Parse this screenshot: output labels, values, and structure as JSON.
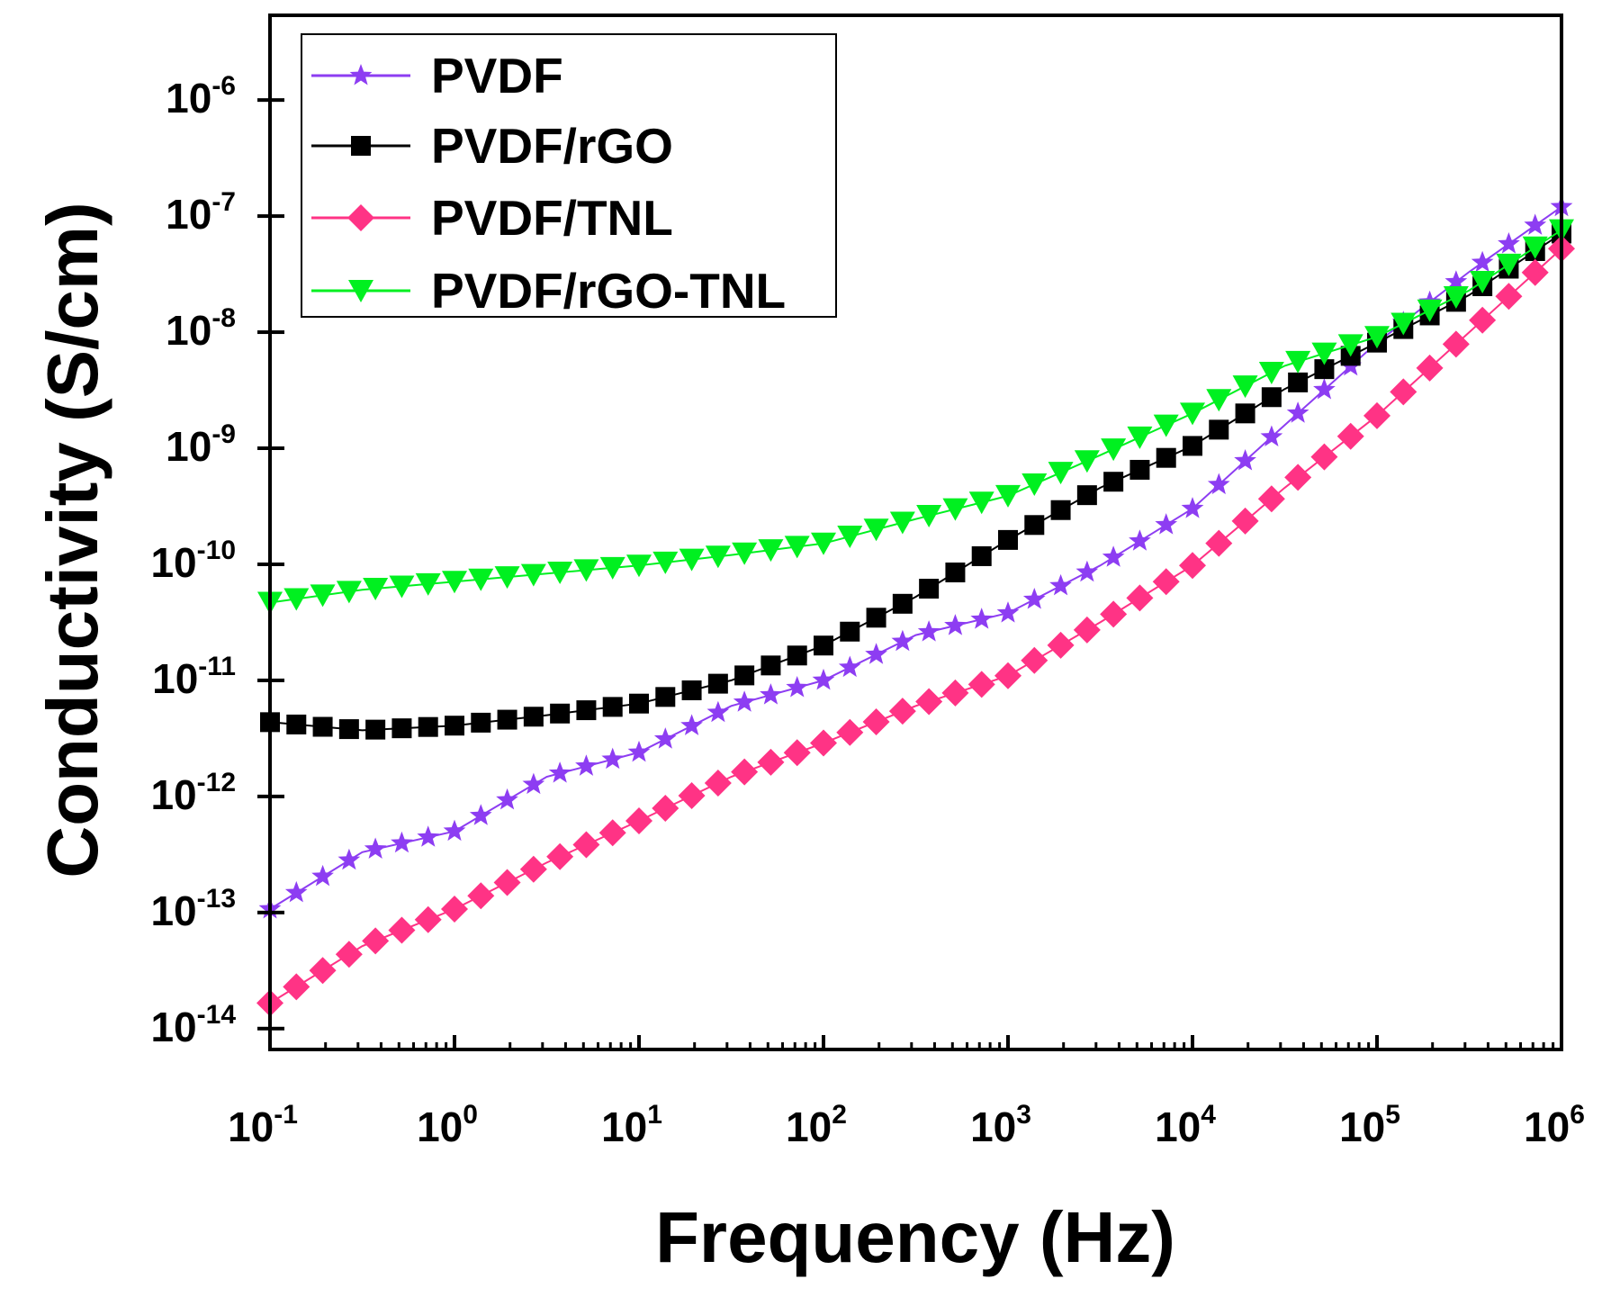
{
  "chart_data": {
    "type": "line",
    "title": "",
    "xlabel": "Frequency (Hz)",
    "ylabel": "Conductivity (S/cm)",
    "xscale": "log",
    "yscale": "log",
    "xlim_log10": [
      -1,
      6
    ],
    "ylim_log10": [
      -14.18,
      -5.27
    ],
    "x_ticks": [
      {
        "base": "10",
        "exp": "-1"
      },
      {
        "base": "10",
        "exp": "0"
      },
      {
        "base": "10",
        "exp": "1"
      },
      {
        "base": "10",
        "exp": "2"
      },
      {
        "base": "10",
        "exp": "3"
      },
      {
        "base": "10",
        "exp": "4"
      },
      {
        "base": "10",
        "exp": "5"
      },
      {
        "base": "10",
        "exp": "6"
      }
    ],
    "y_ticks": [
      {
        "base": "10",
        "exp": "-6"
      },
      {
        "base": "10",
        "exp": "-7"
      },
      {
        "base": "10",
        "exp": "-8"
      },
      {
        "base": "10",
        "exp": "-9"
      },
      {
        "base": "10",
        "exp": "-10"
      },
      {
        "base": "10",
        "exp": "-11"
      },
      {
        "base": "10",
        "exp": "-12"
      },
      {
        "base": "10",
        "exp": "-13"
      },
      {
        "base": "10",
        "exp": "-14"
      }
    ],
    "grid": false,
    "legend_position": "top-left",
    "x_log10": [
      -1,
      -0.5,
      0,
      0.5,
      1,
      1.5,
      2,
      2.5,
      3,
      3.5,
      4,
      4.5,
      5,
      5.5,
      6
    ],
    "series": [
      {
        "name": "PVDF",
        "color": "#8d3df2",
        "marker": "star",
        "y_log10": [
          -12.97,
          -12.48,
          -12.3,
          -11.83,
          -11.62,
          -11.22,
          -11.0,
          -10.61,
          -10.42,
          -10.01,
          -9.52,
          -8.8,
          -8.09,
          -7.48,
          -6.92
        ]
      },
      {
        "name": "PVDF/rGO",
        "color": "#000000",
        "marker": "square",
        "y_log10": [
          -11.36,
          -11.43,
          -11.39,
          -11.3,
          -11.2,
          -11.0,
          -10.7,
          -10.28,
          -9.79,
          -9.34,
          -8.98,
          -8.49,
          -8.09,
          -7.68,
          -7.15
        ]
      },
      {
        "name": "PVDF/TNL",
        "color": "#ff3385",
        "marker": "diamond",
        "y_log10": [
          -13.78,
          -13.29,
          -12.97,
          -12.57,
          -12.21,
          -11.83,
          -11.54,
          -11.22,
          -10.96,
          -10.5,
          -10.01,
          -9.34,
          -8.72,
          -8.0,
          -7.28
        ]
      },
      {
        "name": "PVDF/rGO-TNL",
        "color": "#00f020",
        "marker": "triangle-down",
        "y_log10": [
          -10.33,
          -10.22,
          -10.15,
          -10.08,
          -10.01,
          -9.92,
          -9.82,
          -9.61,
          -9.41,
          -9.06,
          -8.7,
          -8.29,
          -8.04,
          -7.64,
          -7.12
        ]
      }
    ]
  }
}
